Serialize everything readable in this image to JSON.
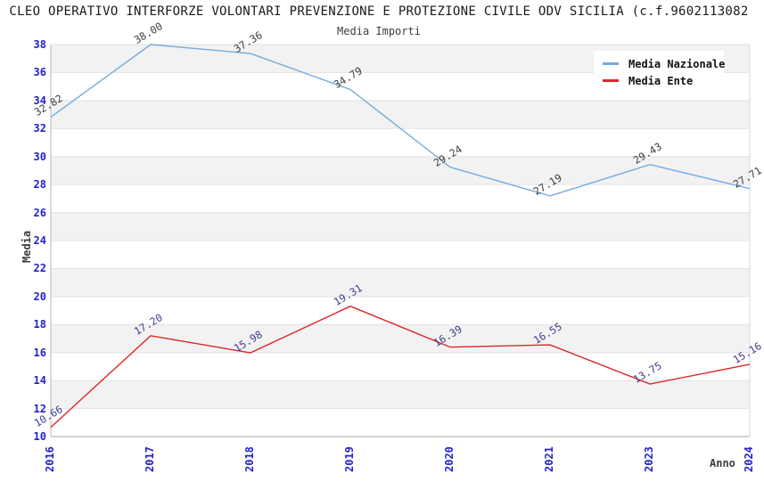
{
  "chart": {
    "title": "CLEO OPERATIVO INTERFORZE VOLONTARI PREVENZIONE E PROTEZIONE CIVILE ODV SICILIA (c.f.9602113082",
    "subtitle": "Media Importi",
    "xlabel": "Anno",
    "ylabel": "Media"
  },
  "chart_data": {
    "type": "line",
    "title": "Media Importi",
    "xlabel": "Anno",
    "ylabel": "Media",
    "categories": [
      "2016",
      "2017",
      "2018",
      "2019",
      "2020",
      "2021",
      "2023",
      "2024"
    ],
    "series": [
      {
        "name": "Media Nazionale",
        "color": "#76abdf",
        "label_color": "#3d3d3d",
        "values": [
          32.82,
          38.0,
          37.36,
          34.79,
          29.24,
          27.19,
          29.43,
          27.71
        ],
        "labels": [
          "32.82",
          "38.00",
          "37.36",
          "34.79",
          "29.24",
          "27.19",
          "29.43",
          "27.71"
        ]
      },
      {
        "name": "Media Ente",
        "color": "#dd2525",
        "label_color": "#3e3e8f",
        "values": [
          10.66,
          17.2,
          15.98,
          19.31,
          16.39,
          16.55,
          13.75,
          15.16
        ],
        "labels": [
          "10.66",
          "17.20",
          "15.98",
          "19.31",
          "16.39",
          "16.55",
          "13.75",
          "15.16"
        ]
      }
    ],
    "ylim": [
      10,
      38
    ],
    "yticks": [
      10,
      12,
      14,
      16,
      18,
      20,
      22,
      24,
      26,
      28,
      30,
      32,
      34,
      36,
      38
    ],
    "grid": "horizontal-bands",
    "band_color": "#f2f2f2",
    "gridline_color": "#e3e3e3",
    "tick_label_color": "#2222cc",
    "legend_position": "upper right"
  }
}
